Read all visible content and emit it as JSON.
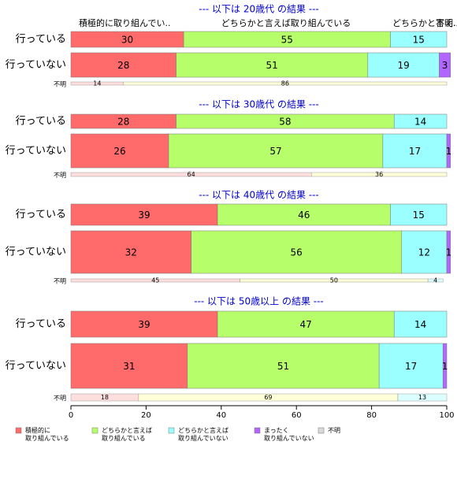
{
  "chart_data": {
    "type": "bar",
    "stacked": true,
    "orientation": "horizontal",
    "xlim": [
      0,
      100
    ],
    "xticks": [
      0,
      20,
      40,
      60,
      80,
      100
    ],
    "series": [
      {
        "name": "積極的に\n取り組んでいる",
        "color": "#ff6b6b",
        "pale_color": "#ffdede"
      },
      {
        "name": "どちらかと言えば\n取り組んでいる",
        "color": "#b6ff6b",
        "pale_color": "#ffffd8"
      },
      {
        "name": "どちらかと言えば\n取り組んでいない",
        "color": "#9cffff",
        "pale_color": "#dcffff"
      },
      {
        "name": "まったく\n取り組んでいない",
        "color": "#b366ff",
        "pale_color": "#eeddff"
      },
      {
        "name": "不明",
        "color": "#d9d9d9",
        "pale_color": "#eeeeee"
      }
    ],
    "panels": [
      {
        "title": "--- 以下は 20歳代 の結果 ---",
        "column_labels": [
          "積極的に取り組んでい..",
          "どちらかと言えば取り組んでいる",
          "どちらかと言え..",
          "不明.."
        ],
        "categories": [
          "行っている",
          "行っていない",
          "不明"
        ],
        "values": [
          [
            30,
            55,
            15,
            null,
            null
          ],
          [
            28,
            51,
            19,
            3,
            null
          ],
          [
            14,
            86,
            null,
            null,
            null
          ]
        ]
      },
      {
        "title": "--- 以下は 30歳代 の結果 ---",
        "categories": [
          "行っている",
          "行っていない",
          "不明"
        ],
        "values": [
          [
            28,
            58,
            14,
            null,
            null
          ],
          [
            26,
            57,
            17,
            1,
            null
          ],
          [
            64,
            36,
            null,
            null,
            null
          ]
        ]
      },
      {
        "title": "--- 以下は 40歳代 の結果 ---",
        "categories": [
          "行っている",
          "行っていない",
          "不明"
        ],
        "values": [
          [
            39,
            46,
            15,
            null,
            null
          ],
          [
            32,
            56,
            12,
            1,
            null
          ],
          [
            45,
            50,
            4,
            null,
            null
          ]
        ]
      },
      {
        "title": "--- 以下は 50歳以上 の結果 ---",
        "categories": [
          "行っている",
          "行っていない",
          "不明"
        ],
        "values": [
          [
            39,
            47,
            14,
            null,
            null
          ],
          [
            31,
            51,
            17,
            1,
            null
          ],
          [
            18,
            69,
            13,
            null,
            null
          ]
        ]
      }
    ]
  }
}
